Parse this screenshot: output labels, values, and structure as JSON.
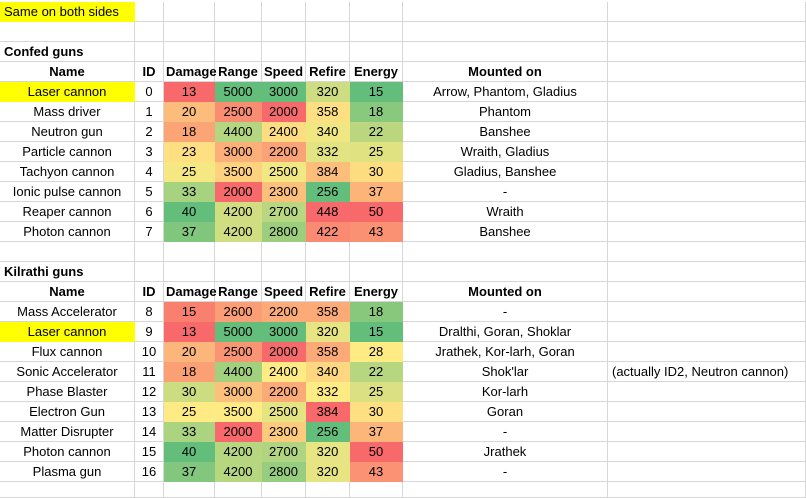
{
  "banner": {
    "text": "Same on both sides"
  },
  "columns": [
    "Name",
    "ID",
    "Damage",
    "Range",
    "Speed",
    "Refire",
    "Energy",
    "Mounted on"
  ],
  "colors": {
    "highlight": "#FFFF00",
    "gridline": "#D6D6D6",
    "background": "#FFFFFF",
    "text": "#000000",
    "scale_min_red": "#F8696B",
    "scale_mid_yellow": "#FFEB84",
    "scale_max_green": "#63BE7B"
  },
  "tables": [
    {
      "title": "Confed guns",
      "rows": [
        {
          "name": "Laser cannon",
          "highlight": true,
          "id": 0,
          "damage": 13,
          "range": 5000,
          "speed": 3000,
          "refire": 320,
          "energy": 15,
          "mounted": "Arrow, Phantom, Gladius",
          "note": "",
          "cell_colors": {
            "damage": "#F8696B",
            "range": "#63BE7B",
            "speed": "#63BE7B",
            "refire": "#CEDD81",
            "energy": "#63BE7B"
          }
        },
        {
          "name": "Mass driver",
          "highlight": false,
          "id": 1,
          "damage": 20,
          "range": 2500,
          "speed": 2000,
          "refire": 358,
          "energy": 18,
          "mounted": "Phantom",
          "note": "",
          "cell_colors": {
            "damage": "#FCBC7B",
            "range": "#FA8C72",
            "speed": "#F8696B",
            "refire": "#FEDF82",
            "energy": "#88C97D"
          }
        },
        {
          "name": "Neutron gun",
          "highlight": false,
          "id": 2,
          "damage": 18,
          "range": 4400,
          "speed": 2400,
          "refire": 340,
          "energy": 22,
          "mounted": "Banshee",
          "note": "",
          "cell_colors": {
            "damage": "#FBA476",
            "range": "#B4D680",
            "speed": "#FEDD81",
            "refire": "#F0E783",
            "energy": "#BAD780"
          }
        },
        {
          "name": "Particle cannon",
          "highlight": false,
          "id": 3,
          "damage": 23,
          "range": 3000,
          "speed": 2200,
          "refire": 332,
          "energy": 25,
          "mounted": "Wraith, Gladius",
          "note": "",
          "cell_colors": {
            "damage": "#FEDF82",
            "range": "#FCAF79",
            "speed": "#FBA376",
            "refire": "#E2E382",
            "energy": "#E0E282"
          }
        },
        {
          "name": "Tachyon cannon",
          "highlight": false,
          "id": 4,
          "damage": 25,
          "range": 3500,
          "speed": 2500,
          "refire": 384,
          "energy": 30,
          "mounted": "Gladius, Banshee",
          "note": "",
          "cell_colors": {
            "damage": "#F5E883",
            "range": "#FED27F",
            "speed": "#F1E783",
            "refire": "#FDBD7B",
            "energy": "#FEDD81"
          }
        },
        {
          "name": "Ionic pulse cannon",
          "highlight": false,
          "id": 5,
          "damage": 33,
          "range": 2000,
          "speed": 2300,
          "refire": 256,
          "energy": 37,
          "mounted": "-",
          "note": "",
          "cell_colors": {
            "damage": "#A7D27F",
            "range": "#F8696B",
            "speed": "#FDC07C",
            "refire": "#63BE7B",
            "energy": "#FCB479"
          }
        },
        {
          "name": "Reaper cannon",
          "highlight": false,
          "id": 6,
          "damage": 40,
          "range": 4200,
          "speed": 2700,
          "refire": 448,
          "energy": 50,
          "mounted": "Wraith",
          "note": "",
          "cell_colors": {
            "damage": "#63BE7B",
            "range": "#D0DD81",
            "speed": "#B8D780",
            "refire": "#F8696B",
            "energy": "#F8696B"
          }
        },
        {
          "name": "Photon cannon",
          "highlight": false,
          "id": 7,
          "damage": 37,
          "range": 4200,
          "speed": 2800,
          "refire": 422,
          "energy": 43,
          "mounted": "Banshee",
          "note": "",
          "cell_colors": {
            "damage": "#80C67D",
            "range": "#D0DD81",
            "speed": "#9CCE7E",
            "refire": "#FA8B72",
            "energy": "#FA9173"
          }
        }
      ]
    },
    {
      "title": "Kilrathi guns",
      "rows": [
        {
          "name": "Mass Accelerator",
          "highlight": false,
          "id": 8,
          "damage": 15,
          "range": 2600,
          "speed": 2200,
          "refire": 358,
          "energy": 18,
          "mounted": "-",
          "note": "",
          "cell_colors": {
            "damage": "#F97F6F",
            "range": "#FB9D75",
            "speed": "#FCAA78",
            "refire": "#FCAA78",
            "energy": "#87C87D"
          }
        },
        {
          "name": "Laser cannon",
          "highlight": true,
          "id": 9,
          "damage": 13,
          "range": 5000,
          "speed": 3000,
          "refire": 320,
          "energy": 15,
          "mounted": "Dralthi, Goran, Shoklar",
          "note": "",
          "cell_colors": {
            "damage": "#F8696B",
            "range": "#63BE7B",
            "speed": "#63BE7B",
            "refire": "#E6E483",
            "energy": "#63BE7B"
          }
        },
        {
          "name": "Flux cannon",
          "highlight": false,
          "id": 10,
          "damage": 20,
          "range": 2500,
          "speed": 2000,
          "refire": 358,
          "energy": 28,
          "mounted": "Jrathek, Kor-larh, Goran",
          "note": "",
          "cell_colors": {
            "damage": "#FCB57A",
            "range": "#FA9473",
            "speed": "#F8696B",
            "refire": "#FCAA78",
            "energy": "#FFEB84"
          }
        },
        {
          "name": "Sonic Accelerator",
          "highlight": false,
          "id": 11,
          "damage": 18,
          "range": 4400,
          "speed": 2400,
          "refire": 340,
          "energy": 22,
          "mounted": "Shok'lar",
          "note": "(actually ID2, Neutron cannon)",
          "cell_colors": {
            "damage": "#FB9F75",
            "range": "#A1D07F",
            "speed": "#FFEB84",
            "refire": "#FED780",
            "energy": "#B7D680"
          }
        },
        {
          "name": "Phase Blaster",
          "highlight": false,
          "id": 12,
          "damage": 30,
          "range": 3000,
          "speed": 2200,
          "refire": 332,
          "energy": 25,
          "mounted": "Kor-larh",
          "note": "",
          "cell_colors": {
            "damage": "#CBDC81",
            "range": "#FDC07C",
            "speed": "#FCAA78",
            "refire": "#FFEB84",
            "energy": "#DBE182"
          }
        },
        {
          "name": "Electron Gun",
          "highlight": false,
          "id": 13,
          "damage": 25,
          "range": 3500,
          "speed": 2500,
          "refire": 384,
          "energy": 30,
          "mounted": "Goran",
          "note": "",
          "cell_colors": {
            "damage": "#FFEB84",
            "range": "#FFEB84",
            "speed": "#E5E483",
            "refire": "#F8696B",
            "energy": "#FEDF82"
          }
        },
        {
          "name": "Matter Disrupter",
          "highlight": false,
          "id": 14,
          "damage": 33,
          "range": 2000,
          "speed": 2300,
          "refire": 256,
          "energy": 37,
          "mounted": "-",
          "note": "",
          "cell_colors": {
            "damage": "#ACD37F",
            "range": "#F8696B",
            "speed": "#FDCA7E",
            "refire": "#63BE7B",
            "energy": "#FCB67A"
          }
        },
        {
          "name": "Photon cannon",
          "highlight": false,
          "id": 15,
          "damage": 40,
          "range": 4200,
          "speed": 2700,
          "refire": 320,
          "energy": 50,
          "mounted": "Jrathek",
          "note": "",
          "cell_colors": {
            "damage": "#63BE7B",
            "range": "#B6D680",
            "speed": "#B1D480",
            "refire": "#E6E483",
            "energy": "#F8696B"
          }
        },
        {
          "name": "Plasma gun",
          "highlight": false,
          "id": 16,
          "damage": 37,
          "range": 4200,
          "speed": 2800,
          "refire": 320,
          "energy": 43,
          "mounted": "-",
          "note": "",
          "cell_colors": {
            "damage": "#82C77D",
            "range": "#B6D680",
            "speed": "#97CD7E",
            "refire": "#E6E483",
            "energy": "#FA9273"
          }
        }
      ]
    }
  ]
}
